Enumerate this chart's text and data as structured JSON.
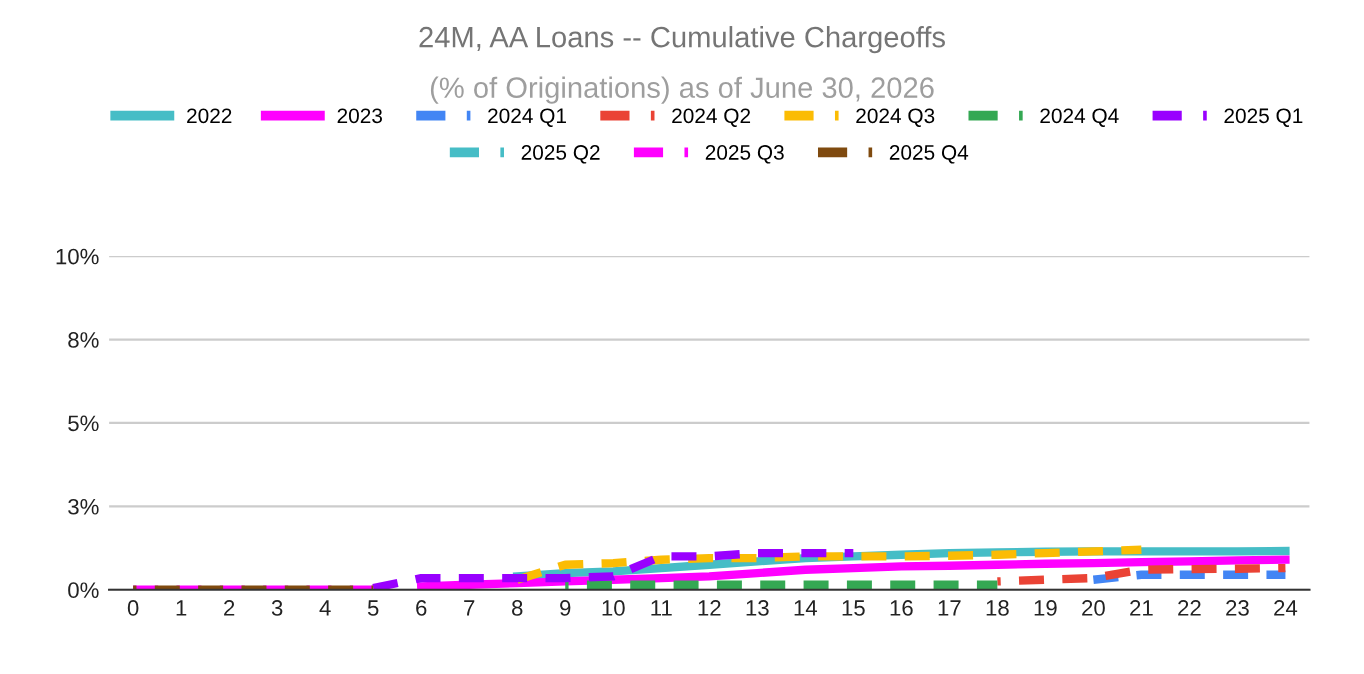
{
  "chart_data": {
    "type": "line",
    "title": "24M, AA Loans -- Cumulative Chargeoffs",
    "subtitle": "(% of Originations) as of June 30, 2026",
    "x": [
      0,
      1,
      2,
      3,
      4,
      5,
      6,
      7,
      8,
      9,
      10,
      11,
      12,
      13,
      14,
      15,
      16,
      17,
      18,
      19,
      20,
      21,
      22,
      23,
      24
    ],
    "xlim": [
      -0.5,
      24.5
    ],
    "xticks": [
      0,
      1,
      2,
      3,
      4,
      5,
      6,
      7,
      8,
      9,
      10,
      11,
      12,
      13,
      14,
      15,
      16,
      17,
      18,
      19,
      20,
      21,
      22,
      23,
      24
    ],
    "ylim": [
      0,
      10
    ],
    "yticks": [
      {
        "value": 0,
        "label": "0%"
      },
      {
        "value": 2.5,
        "label": "3%"
      },
      {
        "value": 5,
        "label": "5%"
      },
      {
        "value": 7.5,
        "label": "8%"
      },
      {
        "value": 10,
        "label": "10%"
      }
    ],
    "grid": "y",
    "legend": "top",
    "marker": "none",
    "series": [
      {
        "name": "2022",
        "color": "#46bdc6",
        "line_style": "solid",
        "values": [
          null,
          null,
          null,
          null,
          null,
          null,
          null,
          null,
          0.4,
          0.5,
          0.55,
          0.65,
          0.75,
          0.85,
          0.95,
          1.0,
          1.05,
          1.1,
          1.12,
          1.14,
          1.15,
          1.15,
          1.15,
          1.15,
          1.16
        ]
      },
      {
        "name": "2023",
        "color": "#ff00ff",
        "line_style": "solid",
        "values": [
          null,
          null,
          null,
          null,
          null,
          null,
          0.1,
          0.15,
          0.2,
          0.25,
          0.3,
          0.35,
          0.4,
          0.5,
          0.6,
          0.65,
          0.7,
          0.72,
          0.75,
          0.78,
          0.8,
          0.83,
          0.85,
          0.88,
          0.9
        ]
      },
      {
        "name": "2024 Q1",
        "color": "#4285f4",
        "line_style": "dashed",
        "values": [
          null,
          null,
          null,
          null,
          null,
          null,
          null,
          null,
          null,
          null,
          null,
          null,
          null,
          null,
          null,
          null,
          null,
          null,
          null,
          null,
          0.3,
          0.45,
          0.45,
          0.45,
          0.45
        ]
      },
      {
        "name": "2024 Q2",
        "color": "#ea4335",
        "line_style": "dashed",
        "values": [
          null,
          null,
          null,
          null,
          null,
          null,
          null,
          null,
          null,
          null,
          null,
          null,
          null,
          null,
          null,
          null,
          null,
          null,
          0.25,
          0.3,
          0.35,
          0.6,
          0.62,
          0.63,
          0.65
        ]
      },
      {
        "name": "2024 Q3",
        "color": "#fbbc04",
        "line_style": "dashed",
        "values": [
          null,
          null,
          null,
          null,
          null,
          null,
          null,
          null,
          0.3,
          0.75,
          0.8,
          0.9,
          0.95,
          0.95,
          1.0,
          1.0,
          1.0,
          1.02,
          1.05,
          1.1,
          1.15,
          1.2,
          null,
          null,
          null
        ]
      },
      {
        "name": "2024 Q4",
        "color": "#34a853",
        "line_style": "dashed",
        "values": [
          null,
          null,
          null,
          null,
          null,
          null,
          null,
          null,
          null,
          0.15,
          0.15,
          0.15,
          0.15,
          0.15,
          0.15,
          0.15,
          0.15,
          0.15,
          0.15,
          null,
          null,
          null,
          null,
          null,
          null
        ]
      },
      {
        "name": "2025 Q1",
        "color": "#9900ff",
        "line_style": "dashed",
        "values": [
          null,
          null,
          null,
          null,
          null,
          0.05,
          0.35,
          0.35,
          0.35,
          0.35,
          0.4,
          1.0,
          1.0,
          1.1,
          1.1,
          1.1,
          null,
          null,
          null,
          null,
          null,
          null,
          null,
          null,
          null
        ]
      },
      {
        "name": "2025 Q2",
        "color": "#46bdc6",
        "line_style": "dashed",
        "values": [
          null,
          null,
          null,
          null,
          null,
          null,
          null,
          null,
          null,
          null,
          null,
          null,
          null,
          null,
          null,
          null,
          null,
          null,
          null,
          null,
          null,
          null,
          null,
          null,
          null
        ]
      },
      {
        "name": "2025 Q3",
        "color": "#ff00ff",
        "line_style": "dashed",
        "values": [
          0,
          0,
          0,
          0,
          0,
          0,
          null,
          null,
          null,
          null,
          null,
          null,
          null,
          null,
          null,
          null,
          null,
          null,
          null,
          null,
          null,
          null,
          null,
          null,
          null
        ]
      },
      {
        "name": "2025 Q4",
        "color": "#7f4a0f",
        "line_style": "dashed",
        "values": [
          0,
          0,
          0,
          0,
          0,
          0,
          null,
          null,
          null,
          null,
          null,
          null,
          null,
          null,
          null,
          null,
          null,
          null,
          null,
          null,
          null,
          null,
          null,
          null,
          null
        ]
      }
    ]
  }
}
